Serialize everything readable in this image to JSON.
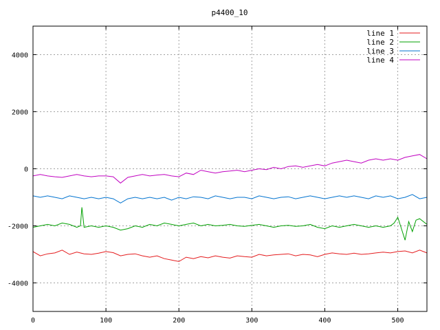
{
  "chart_data": {
    "type": "line",
    "title": "p4400_10",
    "xlabel": "",
    "ylabel": "",
    "xlim": [
      0,
      540
    ],
    "ylim": [
      -5000,
      5000
    ],
    "x_ticks": [
      0,
      100,
      200,
      300,
      400,
      500
    ],
    "y_ticks": [
      -4000,
      -2000,
      0,
      2000,
      4000
    ],
    "grid": true,
    "legend_position": "top-right",
    "series": [
      {
        "name": "line 1",
        "color": "#e41a1c",
        "x": [
          0,
          10,
          20,
          30,
          40,
          50,
          60,
          70,
          80,
          90,
          100,
          110,
          120,
          130,
          140,
          150,
          160,
          170,
          180,
          190,
          200,
          210,
          220,
          230,
          240,
          250,
          260,
          270,
          280,
          290,
          300,
          310,
          320,
          330,
          340,
          350,
          360,
          370,
          380,
          390,
          400,
          410,
          420,
          430,
          440,
          450,
          460,
          470,
          480,
          490,
          500,
          510,
          520,
          530,
          540
        ],
        "y": [
          -2900,
          -3050,
          -2980,
          -2950,
          -2850,
          -3000,
          -2920,
          -2980,
          -3000,
          -2960,
          -2900,
          -2940,
          -3050,
          -3000,
          -2980,
          -3050,
          -3100,
          -3050,
          -3150,
          -3200,
          -3250,
          -3100,
          -3150,
          -3080,
          -3120,
          -3050,
          -3100,
          -3130,
          -3050,
          -3080,
          -3100,
          -3000,
          -3050,
          -3020,
          -3000,
          -2980,
          -3050,
          -3000,
          -3020,
          -3080,
          -3000,
          -2950,
          -2980,
          -3000,
          -2960,
          -3000,
          -2980,
          -2950,
          -2920,
          -2950,
          -2900,
          -2880,
          -2950,
          -2850,
          -2950
        ]
      },
      {
        "name": "line 2",
        "color": "#00a000",
        "x": [
          0,
          10,
          20,
          30,
          40,
          50,
          60,
          65,
          67,
          70,
          80,
          90,
          100,
          110,
          120,
          130,
          140,
          150,
          160,
          170,
          180,
          190,
          200,
          210,
          220,
          230,
          240,
          250,
          260,
          270,
          280,
          290,
          300,
          310,
          320,
          330,
          340,
          350,
          360,
          370,
          380,
          390,
          400,
          410,
          420,
          430,
          440,
          450,
          460,
          470,
          480,
          490,
          495,
          500,
          505,
          510,
          515,
          520,
          525,
          530,
          540
        ],
        "y": [
          -2050,
          -2000,
          -1950,
          -2000,
          -1900,
          -1950,
          -2050,
          -2000,
          -1350,
          -2050,
          -2000,
          -2050,
          -2000,
          -2050,
          -2150,
          -2100,
          -2000,
          -2050,
          -1950,
          -2000,
          -1900,
          -1950,
          -2000,
          -1950,
          -1900,
          -2000,
          -1950,
          -2000,
          -1980,
          -1950,
          -2000,
          -2020,
          -1980,
          -1950,
          -2000,
          -2050,
          -2000,
          -1980,
          -2020,
          -2000,
          -1950,
          -2050,
          -2100,
          -2000,
          -2050,
          -2000,
          -1950,
          -2000,
          -2050,
          -2000,
          -2050,
          -2000,
          -1900,
          -1700,
          -2100,
          -2500,
          -1850,
          -2200,
          -1800,
          -1750,
          -1950
        ]
      },
      {
        "name": "line 3",
        "color": "#0072cf",
        "x": [
          0,
          10,
          20,
          30,
          40,
          50,
          60,
          70,
          80,
          90,
          100,
          110,
          120,
          130,
          140,
          150,
          160,
          170,
          180,
          190,
          200,
          210,
          220,
          230,
          240,
          250,
          260,
          270,
          280,
          290,
          300,
          310,
          320,
          330,
          340,
          350,
          360,
          370,
          380,
          390,
          400,
          410,
          420,
          430,
          440,
          450,
          460,
          470,
          480,
          490,
          500,
          510,
          520,
          530,
          540
        ],
        "y": [
          -950,
          -1000,
          -950,
          -1000,
          -1050,
          -950,
          -1000,
          -1050,
          -1000,
          -1050,
          -1000,
          -1050,
          -1200,
          -1050,
          -1000,
          -1050,
          -1000,
          -1050,
          -1000,
          -1100,
          -1000,
          -1050,
          -980,
          -1000,
          -1050,
          -950,
          -1000,
          -1050,
          -1000,
          -1000,
          -1050,
          -950,
          -1000,
          -1050,
          -1000,
          -980,
          -1050,
          -1000,
          -950,
          -1000,
          -1050,
          -1000,
          -950,
          -1000,
          -950,
          -1000,
          -1050,
          -950,
          -1000,
          -950,
          -1050,
          -1000,
          -900,
          -1050,
          -1000
        ]
      },
      {
        "name": "line 4",
        "color": "#c000c0",
        "x": [
          0,
          10,
          20,
          30,
          40,
          50,
          60,
          70,
          80,
          90,
          100,
          110,
          120,
          130,
          140,
          150,
          160,
          170,
          180,
          190,
          200,
          210,
          220,
          230,
          240,
          250,
          260,
          270,
          280,
          290,
          300,
          310,
          320,
          330,
          340,
          350,
          360,
          370,
          380,
          390,
          400,
          410,
          420,
          430,
          440,
          450,
          460,
          470,
          480,
          490,
          500,
          510,
          520,
          530,
          540
        ],
        "y": [
          -250,
          -200,
          -250,
          -280,
          -300,
          -250,
          -200,
          -250,
          -280,
          -250,
          -250,
          -280,
          -500,
          -300,
          -250,
          -200,
          -250,
          -220,
          -200,
          -250,
          -280,
          -150,
          -200,
          -50,
          -100,
          -150,
          -100,
          -80,
          -50,
          -100,
          -50,
          0,
          -30,
          50,
          0,
          80,
          100,
          50,
          100,
          150,
          100,
          200,
          250,
          300,
          250,
          200,
          300,
          350,
          300,
          350,
          300,
          400,
          450,
          500,
          350
        ]
      }
    ]
  }
}
